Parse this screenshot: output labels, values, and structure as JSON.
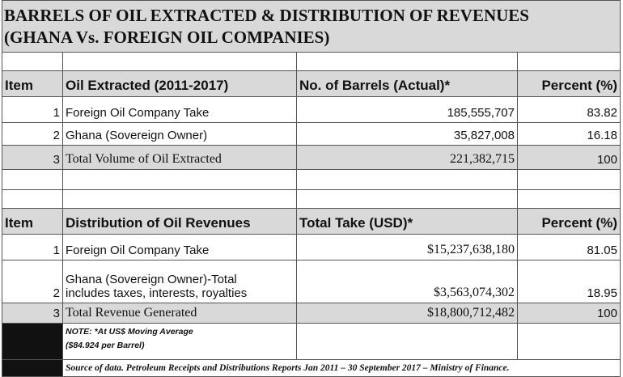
{
  "header": {
    "title_lines": [
      "BARRELS OF OIL EXTRACTED & DISTRIBUTION OF REVENUES",
      "(GHANA Vs. FOREIGN OIL COMPANIES)"
    ]
  },
  "table1": {
    "columns": [
      "Item",
      "Oil Extracted (2011-2017)",
      "No. of Barrels (Actual)*",
      "Percent (%)"
    ],
    "rows": [
      [
        "1",
        "Foreign Oil Company Take",
        "185,555,707",
        "83.82"
      ],
      [
        "2",
        "Ghana (Sovereign Owner)",
        "35,827,008",
        "16.18"
      ],
      [
        "3",
        "Total Volume of Oil Extracted",
        "221,382,715",
        "100"
      ]
    ]
  },
  "table2": {
    "columns": [
      "Item",
      "Distribution of Oil Revenues",
      "Total Take (USD)*",
      "Percent (%)"
    ],
    "rows": [
      [
        "1",
        "Foreign Oil Company Take",
        "$15,237,638,180",
        "81.05"
      ],
      [
        "2",
        [
          "Ghana (Sovereign Owner)-Total",
          "includes taxes, interests, royalties"
        ],
        "$3,563,074,302",
        "18.95"
      ],
      [
        "3",
        "Total Revenue Generated",
        "$18,800,712,482",
        "100"
      ]
    ]
  },
  "note": [
    "NOTE:  *At US$ Moving Average",
    "($84.924 per Barrel)"
  ],
  "source": "Source of data. Petroleum Receipts and Distributions Reports Jan 2011 – 30 September 2017 – Ministry of Finance."
}
